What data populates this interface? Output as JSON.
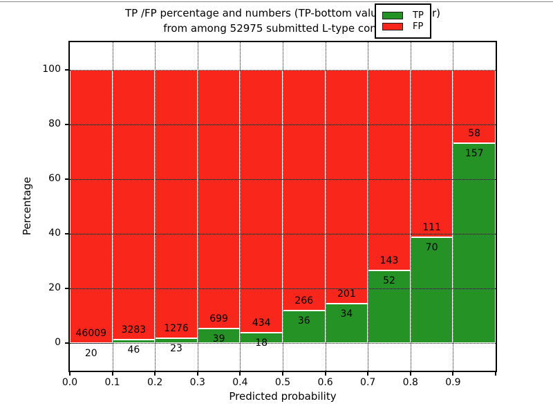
{
  "title": {
    "line1": "TP /FP percentage and numbers (TP-bottom value, FP-upper)",
    "line2": "from among 52975 submitted L-type contacts"
  },
  "chart_data": {
    "type": "bar",
    "stacked": true,
    "total_contacts": 52975,
    "xlabel": "Predicted probability",
    "ylabel": "Percentage",
    "xlim": [
      0.0,
      1.0
    ],
    "ylim": [
      -10,
      110
    ],
    "bin_width": 0.1,
    "xtick_labels": [
      "0.0",
      "0.1",
      "0.2",
      "0.3",
      "0.4",
      "0.5",
      "0.6",
      "0.7",
      "0.8",
      "0.9"
    ],
    "yticks": [
      0,
      20,
      40,
      60,
      80,
      100
    ],
    "grid": "dotted, on top of bars",
    "bar_edge_color": "#ffffff",
    "series": [
      {
        "name": "TP",
        "color": "#249224",
        "counts": [
          20,
          46,
          23,
          39,
          18,
          36,
          34,
          52,
          70,
          157
        ]
      },
      {
        "name": "FP",
        "color": "#f8261b",
        "counts": [
          46009,
          3283,
          1276,
          699,
          434,
          266,
          201,
          143,
          111,
          58
        ]
      }
    ],
    "tp_percent_of_bin": [
      0.04,
      1.38,
      1.77,
      5.28,
      3.98,
      11.92,
      14.47,
      26.67,
      38.67,
      73.02
    ],
    "legend": {
      "position": "upper right",
      "entries": [
        {
          "label": "TP",
          "color": "#249224"
        },
        {
          "label": "FP",
          "color": "#f8261b"
        }
      ]
    }
  }
}
